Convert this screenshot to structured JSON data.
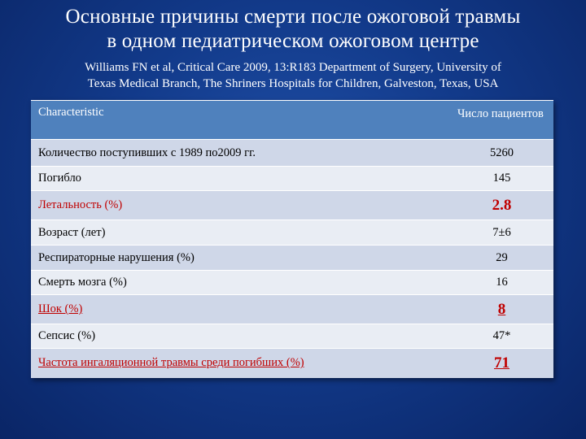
{
  "title_line1": "Основные причины смерти после ожоговой травмы",
  "title_line2": "в одном педиатрическом ожоговом центре",
  "citation_line1": "Williams FN et al, Critical Care 2009, 13:R183 Department of Surgery, University of",
  "citation_line2": "Texas Medical Branch, The Shriners Hospitals for Children, Galveston, Texas, USA",
  "table": {
    "header": {
      "characteristic": "Characteristic",
      "count": "Число пациентов"
    },
    "rows": [
      {
        "label": "Количество поступивших с 1989 по2009 гг.",
        "value": "5260"
      },
      {
        "label": "Погибло",
        "value": "145"
      },
      {
        "label": "Летальность (%)",
        "value": "2.8"
      },
      {
        "label": "Возраст (лет)",
        "value": "7±6"
      },
      {
        "label": "Респираторные нарушения (%)",
        "value": "29"
      },
      {
        "label": "Смерть мозга (%)",
        "value": "16"
      },
      {
        "label": "Шок (%)",
        "value": "8"
      },
      {
        "label": "Сепсис (%)",
        "value": "47*"
      },
      {
        "label": "Частота ингаляционной травмы среди погибших (%)",
        "value": "71"
      }
    ]
  },
  "colors": {
    "header_bg": "#4f81bd",
    "row_odd_bg": "#cfd7e8",
    "row_even_bg": "#e9edf4",
    "highlight": "#c00000"
  }
}
